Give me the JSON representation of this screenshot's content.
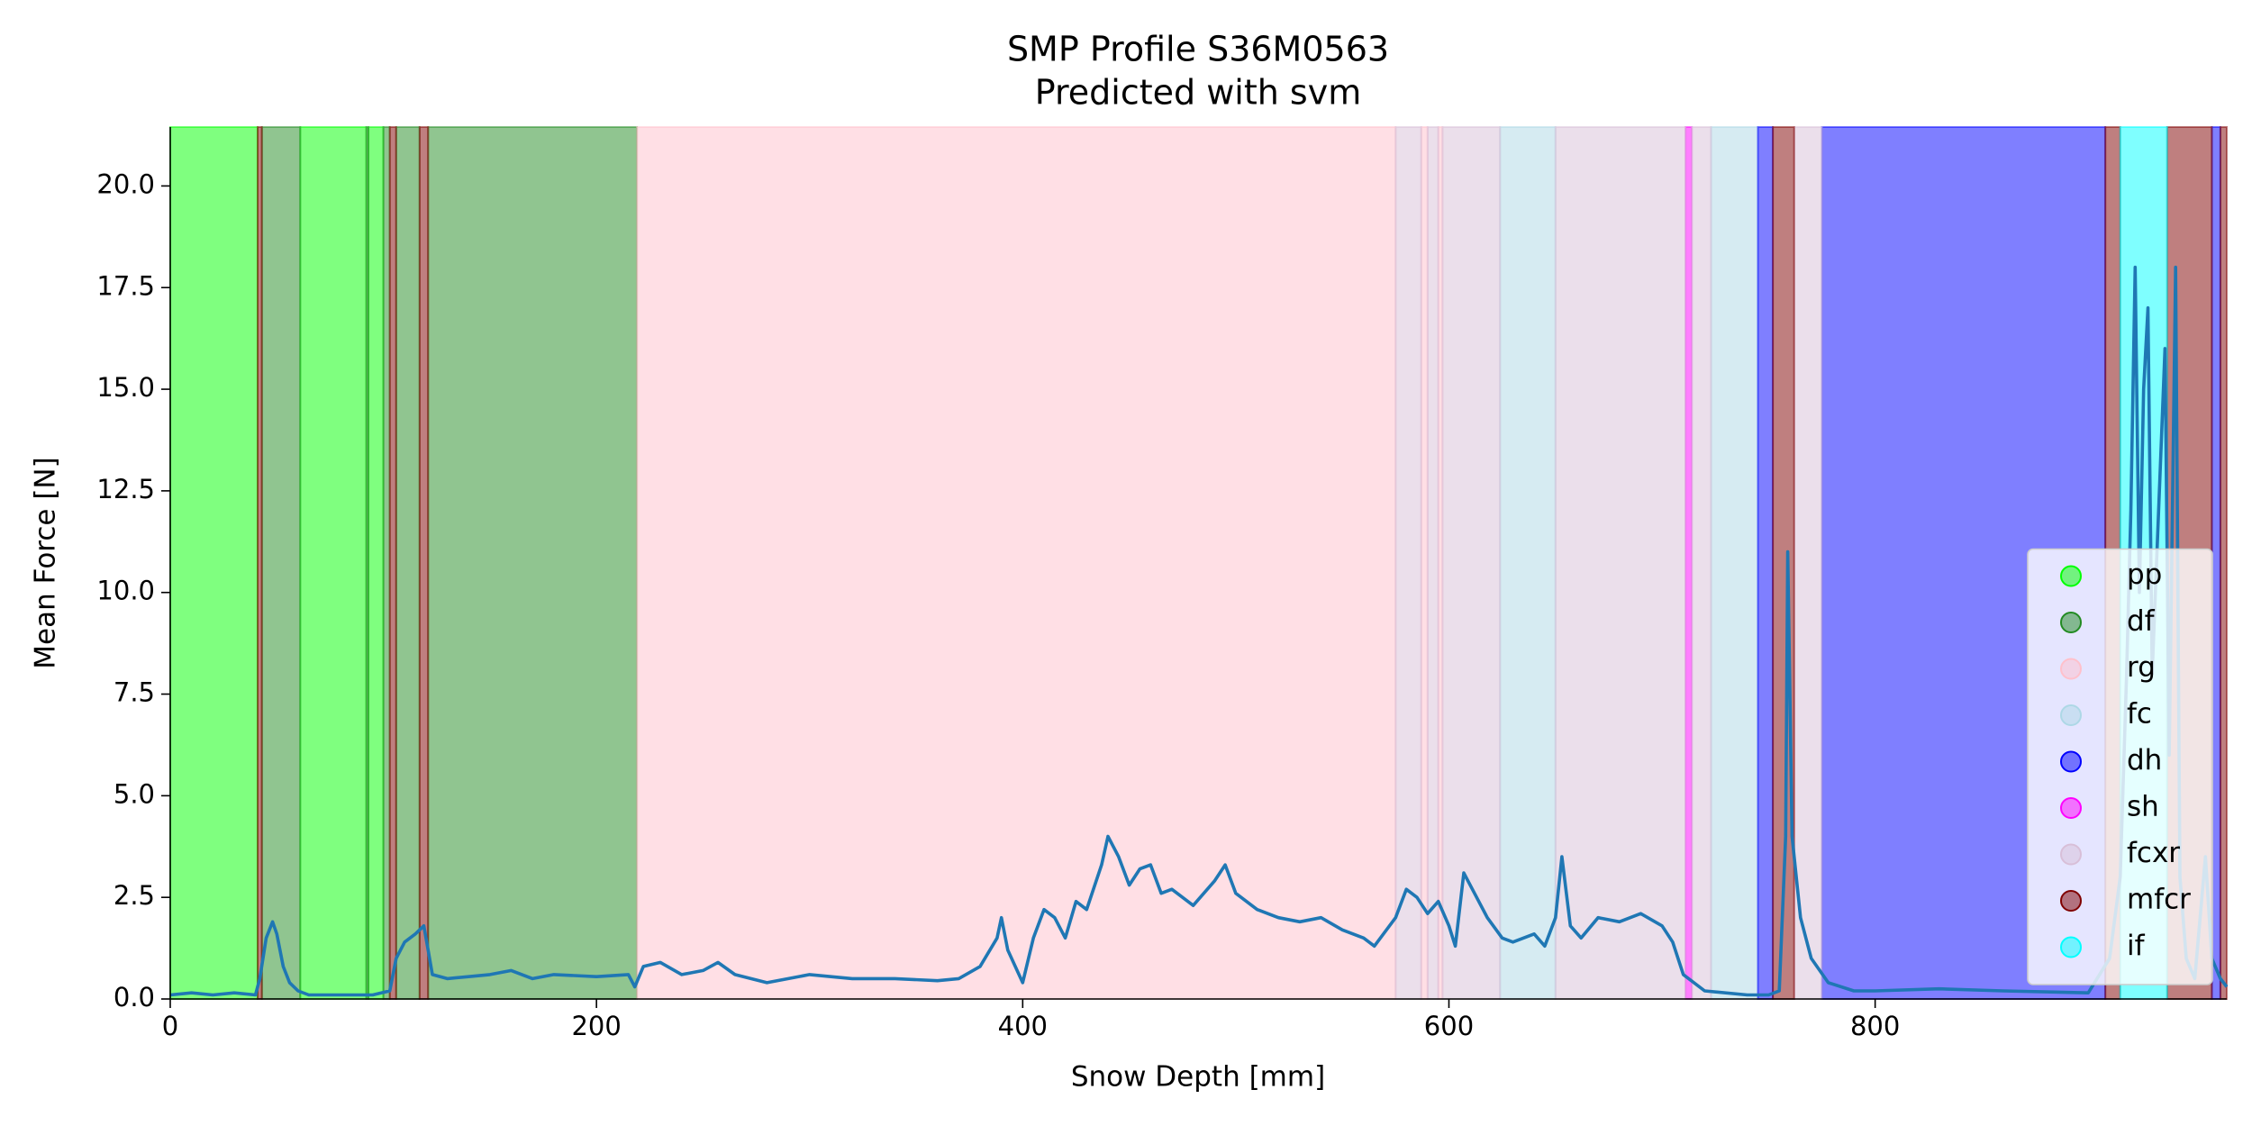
{
  "chart_data": {
    "type": "line",
    "title": "SMP Profile S36M0563",
    "subtitle": "Predicted with svm",
    "xlabel": "Snow Depth [mm]",
    "ylabel": "Mean Force [N]",
    "xlim": [
      0,
      965
    ],
    "ylim": [
      0,
      21.45
    ],
    "xticks": [
      0,
      200,
      400,
      600,
      800
    ],
    "yticks": [
      {
        "value": 0,
        "label": "0.0"
      },
      2.5,
      {
        "value": 5,
        "label": "5.0"
      },
      7.5,
      {
        "value": 10,
        "label": "10.0"
      },
      12.5,
      {
        "value": 15,
        "label": "15.0"
      },
      17.5,
      {
        "value": 20,
        "label": "20.0"
      }
    ],
    "legend": "lower right",
    "span_alpha": 0.5,
    "classes": [
      {
        "name": "pp",
        "color": "#00ff00",
        "spans": [
          [
            0,
            41
          ],
          [
            61,
            92
          ],
          [
            93,
            100
          ]
        ]
      },
      {
        "name": "df",
        "color": "#228b22",
        "spans": [
          [
            43,
            61
          ],
          [
            92,
            93
          ],
          [
            100,
            103
          ],
          [
            106,
            117
          ],
          [
            121,
            219
          ]
        ]
      },
      {
        "name": "rg",
        "color": "#ffc0cb",
        "spans": [
          [
            219,
            575
          ],
          [
            587,
            590
          ],
          [
            595,
            597
          ]
        ]
      },
      {
        "name": "fc",
        "color": "#add8e6",
        "spans": [
          [
            624,
            650
          ],
          [
            723,
            745
          ]
        ]
      },
      {
        "name": "dh",
        "color": "#0000ff",
        "spans": [
          [
            745,
            752
          ],
          [
            775,
            908
          ],
          [
            958,
            962
          ]
        ]
      },
      {
        "name": "sh",
        "color": "#ff00ff",
        "spans": [
          [
            711,
            714
          ]
        ]
      },
      {
        "name": "fcxr",
        "color": "#d8bfd8",
        "spans": [
          [
            575,
            587
          ],
          [
            590,
            595
          ],
          [
            597,
            624
          ],
          [
            650,
            711
          ],
          [
            714,
            723
          ],
          [
            762,
            775
          ]
        ]
      },
      {
        "name": "mfcr",
        "color": "#800000",
        "spans": [
          [
            41,
            43
          ],
          [
            103,
            106
          ],
          [
            117,
            121
          ],
          [
            752,
            762
          ],
          [
            908,
            915
          ],
          [
            937,
            958
          ],
          [
            962,
            965
          ]
        ]
      },
      {
        "name": "if",
        "color": "#00ffff",
        "spans": [
          [
            915,
            937
          ]
        ]
      }
    ],
    "line": {
      "color": "#1f77b4",
      "x": [
        0,
        10,
        20,
        30,
        40,
        42,
        45,
        48,
        50,
        53,
        56,
        60,
        65,
        80,
        95,
        103,
        106,
        110,
        115,
        119,
        121,
        123,
        130,
        140,
        150,
        160,
        170,
        180,
        200,
        215,
        218,
        222,
        230,
        240,
        250,
        257,
        265,
        280,
        300,
        320,
        340,
        360,
        370,
        380,
        388,
        390,
        393,
        400,
        405,
        410,
        415,
        420,
        425,
        430,
        437,
        440,
        445,
        450,
        455,
        460,
        465,
        470,
        480,
        490,
        495,
        500,
        510,
        520,
        530,
        540,
        550,
        560,
        565,
        575,
        580,
        585,
        590,
        595,
        600,
        603,
        607,
        612,
        618,
        625,
        630,
        640,
        645,
        650,
        653,
        657,
        662,
        670,
        680,
        690,
        700,
        705,
        710,
        720,
        740,
        750,
        755,
        758,
        759,
        761,
        765,
        770,
        778,
        790,
        800,
        830,
        860,
        900,
        910,
        915,
        918,
        920,
        922,
        924,
        926,
        928,
        930,
        933,
        936,
        938,
        941,
        943,
        946,
        950,
        955,
        958,
        962,
        965
      ],
      "values": [
        0.1,
        0.15,
        0.1,
        0.15,
        0.1,
        0.5,
        1.5,
        1.9,
        1.6,
        0.8,
        0.4,
        0.2,
        0.1,
        0.1,
        0.1,
        0.2,
        1.0,
        1.4,
        1.6,
        1.8,
        1.2,
        0.6,
        0.5,
        0.55,
        0.6,
        0.7,
        0.5,
        0.6,
        0.55,
        0.6,
        0.3,
        0.8,
        0.9,
        0.6,
        0.7,
        0.9,
        0.6,
        0.4,
        0.6,
        0.5,
        0.5,
        0.45,
        0.5,
        0.8,
        1.5,
        2.0,
        1.2,
        0.4,
        1.5,
        2.2,
        2.0,
        1.5,
        2.4,
        2.2,
        3.3,
        4.0,
        3.5,
        2.8,
        3.2,
        3.3,
        2.6,
        2.7,
        2.3,
        2.9,
        3.3,
        2.6,
        2.2,
        2.0,
        1.9,
        2.0,
        1.7,
        1.5,
        1.3,
        2.0,
        2.7,
        2.5,
        2.1,
        2.4,
        1.8,
        1.3,
        3.1,
        2.6,
        2.0,
        1.5,
        1.4,
        1.6,
        1.3,
        2.0,
        3.5,
        1.8,
        1.5,
        2.0,
        1.9,
        2.1,
        1.8,
        1.4,
        0.6,
        0.2,
        0.1,
        0.1,
        0.2,
        4.0,
        11.0,
        4.0,
        2.0,
        1.0,
        0.4,
        0.2,
        0.2,
        0.25,
        0.2,
        0.15,
        1.0,
        3.0,
        8,
        12,
        18,
        10,
        15,
        17,
        8,
        12,
        16,
        6,
        18,
        3,
        1,
        0.5,
        3.5,
        1,
        0.5,
        0.3
      ]
    }
  }
}
